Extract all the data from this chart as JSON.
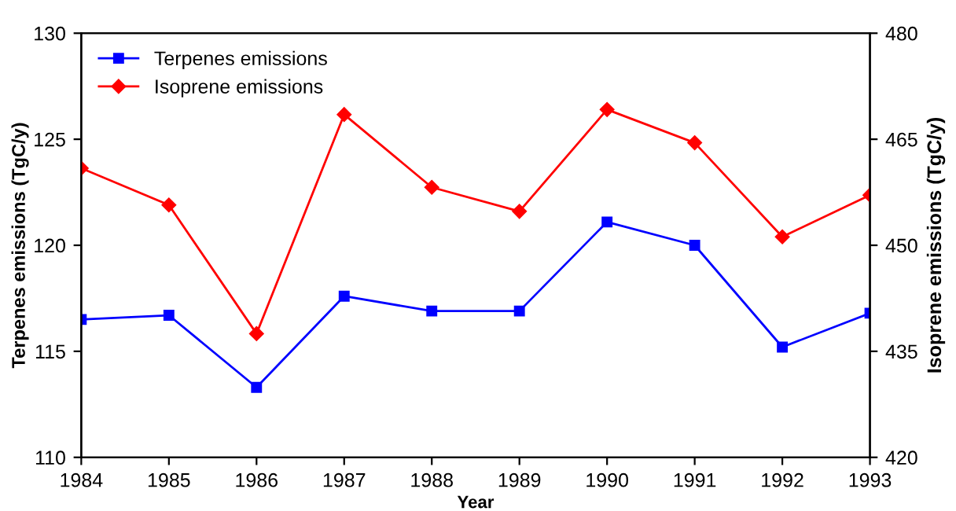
{
  "chart_data": {
    "type": "line",
    "xlabel": "Year",
    "ylabel": "Terpenes emissions (TgC/y)",
    "y2label": "Isoprene emissions (TgC/y)",
    "x": [
      1984,
      1985,
      1986,
      1987,
      1988,
      1989,
      1990,
      1991,
      1992,
      1993
    ],
    "series": [
      {
        "name": "Terpenes emissions",
        "color": "#0000ff",
        "marker": "square",
        "values": [
          116.5,
          116.7,
          113.3,
          117.6,
          116.9,
          116.9,
          121.1,
          120.0,
          115.2,
          116.8
        ]
      },
      {
        "name": "Isoprene emissions",
        "color": "#ff0000",
        "marker": "diamond",
        "axis": "y2",
        "values": [
          460.9,
          455.7,
          437.5,
          468.5,
          458.2,
          454.8,
          469.2,
          464.5,
          451.2,
          457.1
        ]
      }
    ],
    "xlim": [
      1984,
      1993
    ],
    "xticks": [
      1984,
      1985,
      1986,
      1987,
      1988,
      1989,
      1990,
      1991,
      1992,
      1993
    ],
    "ylim": [
      110,
      130
    ],
    "yticks": [
      110,
      115,
      120,
      125,
      130
    ],
    "y2lim": [
      420,
      480
    ],
    "y2ticks": [
      420,
      435,
      450,
      465,
      480
    ],
    "grid": false,
    "legend": "top left"
  }
}
